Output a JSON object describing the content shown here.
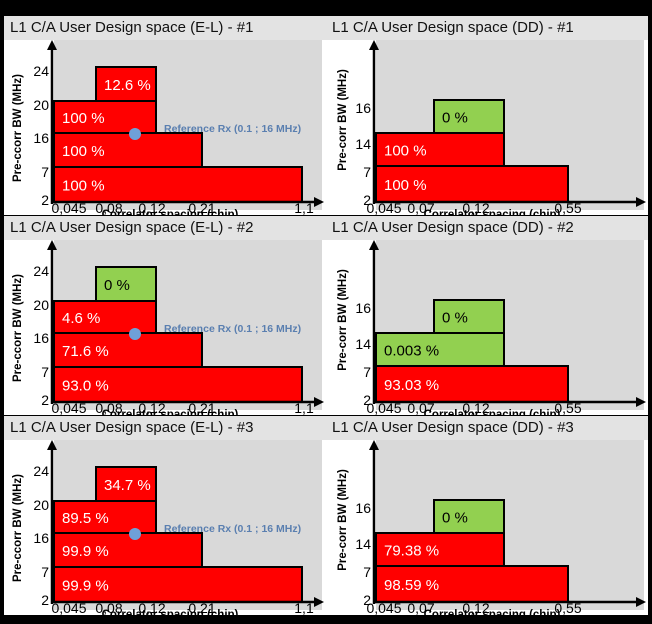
{
  "colors": {
    "red": "#ff0000",
    "green": "#92d050",
    "ref": "#6fa0d8",
    "plot_bg": "#d9d9d9"
  },
  "panels": [
    {
      "title": "L1 C/A User Design space (E-L) - #1",
      "type": "EL",
      "ylabel": "Pre-ccorr BW (MHz)",
      "xlabel": "Correlator spacing (chip)",
      "xticks": [
        "0,045",
        "0,08",
        "0,12",
        "0,21",
        "1,1"
      ],
      "yticks": [
        "2",
        "7",
        "16",
        "20",
        "24"
      ],
      "reference": "Reference Rx (0.1 ; 16 MHz)",
      "bars": [
        {
          "label": "100 %",
          "color": "red"
        },
        {
          "label": "100 %",
          "color": "red"
        },
        {
          "label": "100 %",
          "color": "red"
        },
        {
          "label": "12.6 %",
          "color": "red"
        }
      ]
    },
    {
      "title": "L1 C/A User Design space (DD) - #1",
      "type": "DD",
      "ylabel": "Pre-corr BW (MHz)",
      "xlabel": "Correlator spacing (chip)",
      "xticks": [
        "0,045",
        "0,07",
        "0,12",
        "0,55"
      ],
      "yticks": [
        "2",
        "7",
        "14",
        "16"
      ],
      "bars": [
        {
          "label": "100 %",
          "color": "red"
        },
        {
          "label": "100 %",
          "color": "red"
        },
        {
          "label": "0 %",
          "color": "green"
        }
      ]
    },
    {
      "title": "L1 C/A User Design space (E-L) - #2",
      "type": "EL",
      "ylabel": "Pre-ccorr BW (MHz)",
      "xlabel": "Correlator spacing (chip)",
      "xticks": [
        "0,045",
        "0,08",
        "0,12",
        "0,21",
        "1,1"
      ],
      "yticks": [
        "2",
        "7",
        "16",
        "20",
        "24"
      ],
      "reference": "Reference Rx (0.1 ; 16 MHz)",
      "bars": [
        {
          "label": "93.0 %",
          "color": "red"
        },
        {
          "label": "71.6 %",
          "color": "red"
        },
        {
          "label": "4.6 %",
          "color": "red"
        },
        {
          "label": "0 %",
          "color": "green"
        }
      ]
    },
    {
      "title": "L1 C/A User Design space (DD) - #2",
      "type": "DD",
      "ylabel": "Pre-corr BW (MHz)",
      "xlabel": "Correlator spacing (chip)",
      "xticks": [
        "0,045",
        "0,07",
        "0,12",
        "0,55"
      ],
      "yticks": [
        "2",
        "7",
        "14",
        "16"
      ],
      "bars": [
        {
          "label": "93.03 %",
          "color": "red"
        },
        {
          "label": "0.003 %",
          "color": "green"
        },
        {
          "label": "0 %",
          "color": "green"
        }
      ]
    },
    {
      "title": "L1 C/A User Design space (E-L) - #3",
      "type": "EL",
      "ylabel": "Pre-ccorr BW (MHz)",
      "xlabel": "Correlator spacing (chip)",
      "xticks": [
        "0,045",
        "0,08",
        "0,12",
        "0,21",
        "1,1"
      ],
      "yticks": [
        "2",
        "7",
        "16",
        "20",
        "24"
      ],
      "reference": "Reference Rx (0.1 ; 16 MHz)",
      "bars": [
        {
          "label": "99.9 %",
          "color": "red"
        },
        {
          "label": "99.9 %",
          "color": "red"
        },
        {
          "label": "89.5 %",
          "color": "red"
        },
        {
          "label": "34.7 %",
          "color": "red"
        }
      ]
    },
    {
      "title": "L1 C/A User Design space (DD) - #3",
      "type": "DD",
      "ylabel": "Pre-corr BW (MHz)",
      "xlabel": "Correlator spacing (chip)",
      "xticks": [
        "0,045",
        "0,07",
        "0,12",
        "0,55"
      ],
      "yticks": [
        "2",
        "7",
        "14",
        "16"
      ],
      "bars": [
        {
          "label": "98.59 %",
          "color": "red"
        },
        {
          "label": "79.38 %",
          "color": "red"
        },
        {
          "label": "0 %",
          "color": "green"
        }
      ]
    }
  ]
}
